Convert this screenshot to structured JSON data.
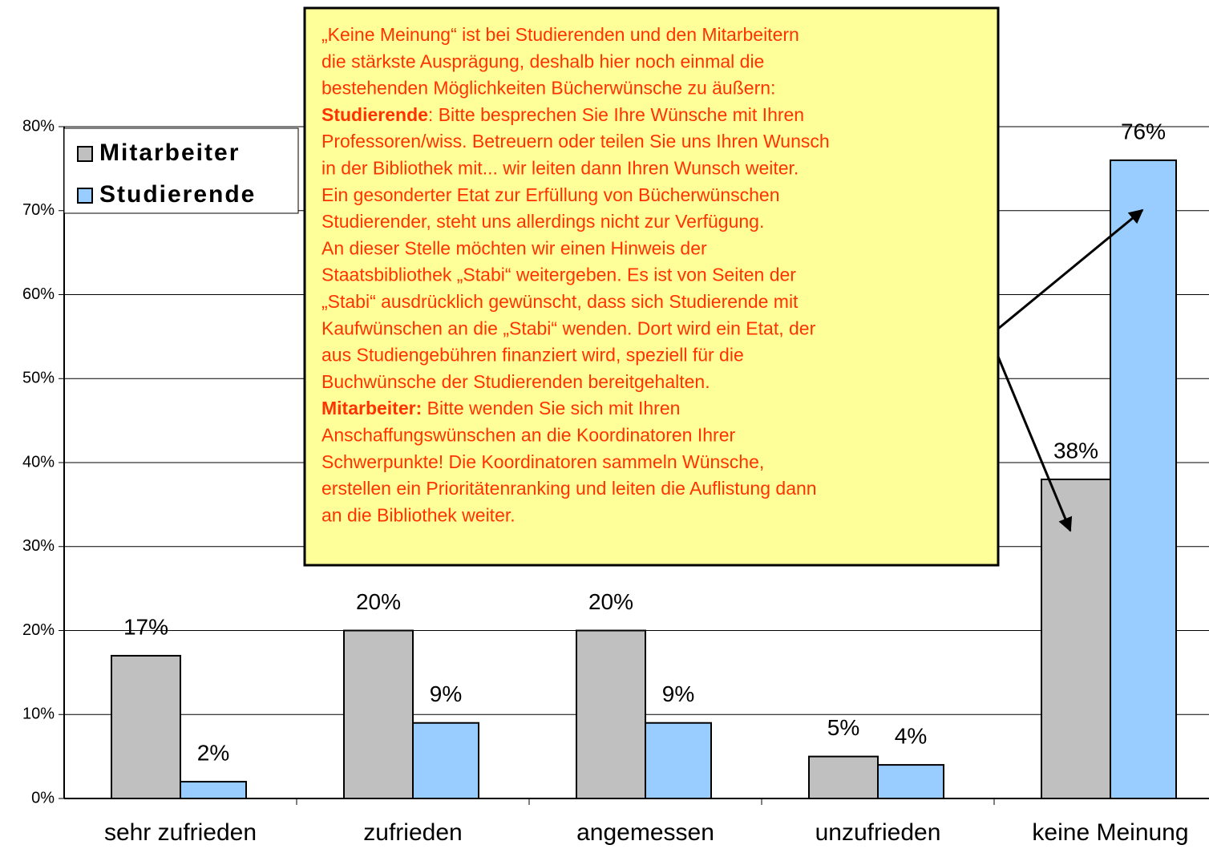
{
  "chart_data": {
    "type": "bar",
    "categories": [
      "sehr zufrieden",
      "zufrieden",
      "angemessen",
      "unzufrieden",
      "keine Meinung"
    ],
    "series": [
      {
        "name": "Mitarbeiter",
        "color": "#c0c0c0",
        "values": [
          17,
          20,
          20,
          5,
          38
        ],
        "value_labels": [
          "17%",
          "20%",
          "20%",
          "5%",
          "38%"
        ]
      },
      {
        "name": "Studierende",
        "color": "#99ccff",
        "values": [
          2,
          9,
          9,
          4,
          76
        ],
        "value_labels": [
          "2%",
          "9%",
          "9%",
          "4%",
          "76%"
        ]
      }
    ],
    "ylim": [
      0,
      80
    ],
    "yticks": [
      {
        "value": 0,
        "label": "0%"
      },
      {
        "value": 10,
        "label": "10%"
      },
      {
        "value": 20,
        "label": "20%"
      },
      {
        "value": 30,
        "label": "30%"
      },
      {
        "value": 40,
        "label": "40%"
      },
      {
        "value": 50,
        "label": "50%"
      },
      {
        "value": 60,
        "label": "60%"
      },
      {
        "value": 70,
        "label": "70%"
      },
      {
        "value": 80,
        "label": "80%"
      }
    ],
    "grid": true,
    "legend": "top-left",
    "annotation": [
      {
        "text": "„Keine Meinung“ ist bei Studierenden und den Mitarbeitern"
      },
      {
        "text": "die stärkste Ausprägung, deshalb hier noch einmal die"
      },
      {
        "text": "bestehenden Möglichkeiten Bücherwünsche zu äußern:"
      },
      {
        "bold": "Studierende",
        "text": ": Bitte besprechen Sie Ihre Wünsche mit Ihren"
      },
      {
        "text": "Professoren/wiss. Betreuern oder teilen Sie uns Ihren Wunsch"
      },
      {
        "text": "in der Bibliothek mit... wir leiten dann Ihren Wunsch weiter."
      },
      {
        "text": "Ein gesonderter Etat zur Erfüllung von Bücherwünschen"
      },
      {
        "text": "Studierender, steht uns allerdings nicht zur Verfügung."
      },
      {
        "text": "An dieser Stelle möchten wir einen Hinweis der"
      },
      {
        "text": "Staatsbibliothek „Stabi“ weitergeben. Es ist von Seiten der"
      },
      {
        "text": "„Stabi“ ausdrücklich gewünscht, dass sich Studierende mit"
      },
      {
        "text": "Kaufwünschen an die „Stabi“ wenden. Dort wird ein Etat, der"
      },
      {
        "text": "aus Studiengebühren finanziert wird, speziell für die"
      },
      {
        "text": "Buchwünsche der Studierenden bereitgehalten."
      },
      {
        "bold": "Mitarbeiter:",
        "text": " Bitte wenden Sie sich mit Ihren"
      },
      {
        "text": "Anschaffungswünschen an die Koordinatoren Ihrer"
      },
      {
        "text": "Schwerpunkte! Die Koordinatoren sammeln Wünsche,"
      },
      {
        "text": "erstellen ein Prioritätenranking und leiten die Auflistung dann"
      },
      {
        "text": "an die Bibliothek weiter."
      }
    ]
  }
}
